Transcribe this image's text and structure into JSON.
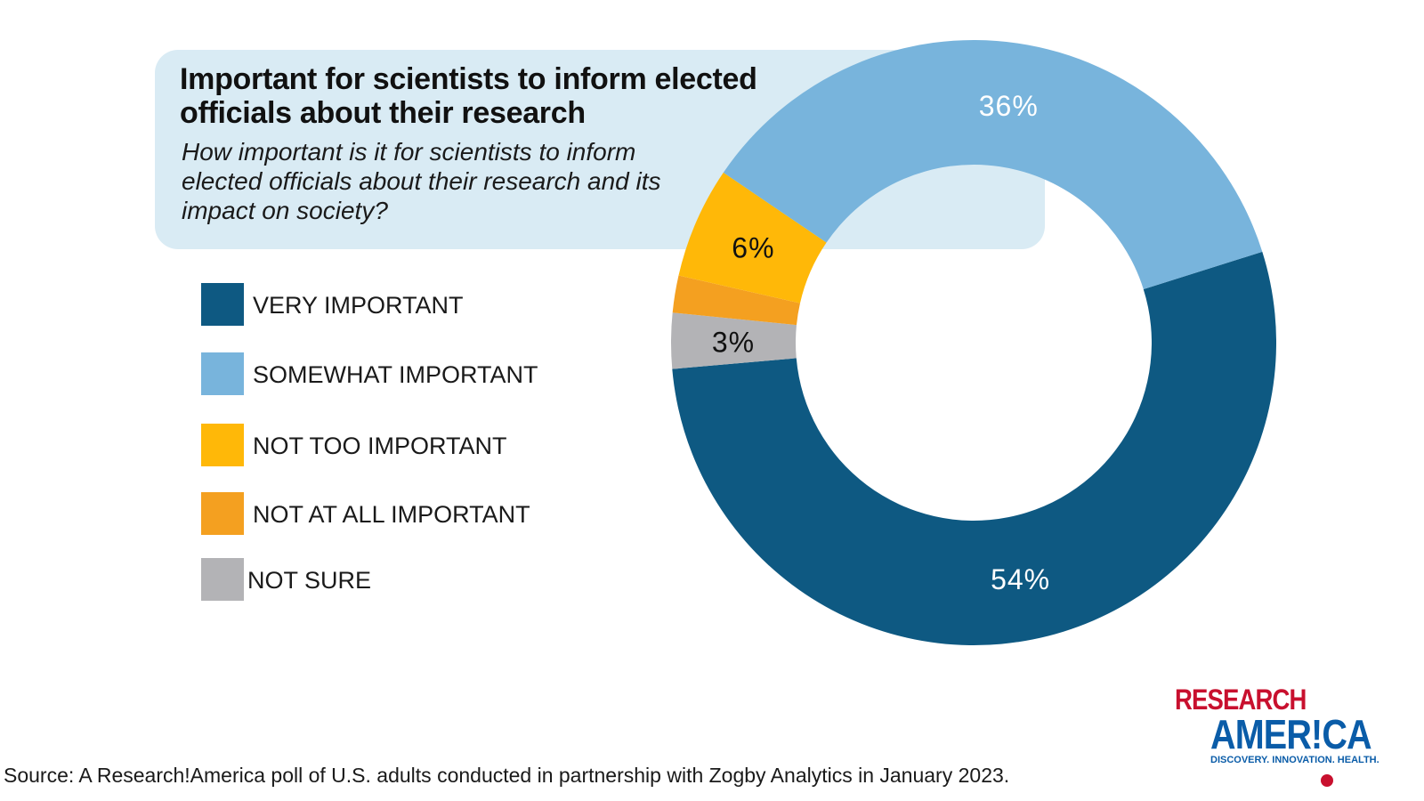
{
  "chart_data": {
    "type": "pie",
    "variant": "donut",
    "title": "Important for scientists to inform elected officials about their research",
    "subtitle": "How important is it for scientists to inform elected officials about their research and its impact on society?",
    "slices": [
      {
        "name": "VERY IMPORTANT",
        "value": 54,
        "label": "54%",
        "color": "#0e5982"
      },
      {
        "name": "NOT SURE",
        "value": 3,
        "label": "3%",
        "color": "#b3b3b6"
      },
      {
        "name": "NOT AT ALL IMPORTANT",
        "value": 2,
        "label": "",
        "color": "#f4a020"
      },
      {
        "name": "NOT TOO IMPORTANT",
        "value": 6,
        "label": "6%",
        "color": "#ffb808"
      },
      {
        "name": "SOMEWHAT IMPORTANT",
        "value": 36,
        "label": "36%",
        "color": "#78b4dc"
      }
    ],
    "legend_placement": "left",
    "legend": [
      {
        "label": "VERY IMPORTANT",
        "color": "#0e5982"
      },
      {
        "label": "SOMEWHAT IMPORTANT",
        "color": "#78b4dc"
      },
      {
        "label": "NOT TOO IMPORTANT",
        "color": "#ffb808"
      },
      {
        "label": "NOT AT ALL IMPORTANT",
        "color": "#f4a020"
      },
      {
        "label": "NOT SURE",
        "color": "#b3b3b6"
      }
    ],
    "source": "Source:  A Research!America poll of U.S. adults conducted in partnership with Zogby Analytics in January 2023."
  },
  "logo": {
    "line1": "RESEARCH",
    "line2": "AMER!CA",
    "tagline": "DISCOVERY. INNOVATION. HEALTH."
  }
}
